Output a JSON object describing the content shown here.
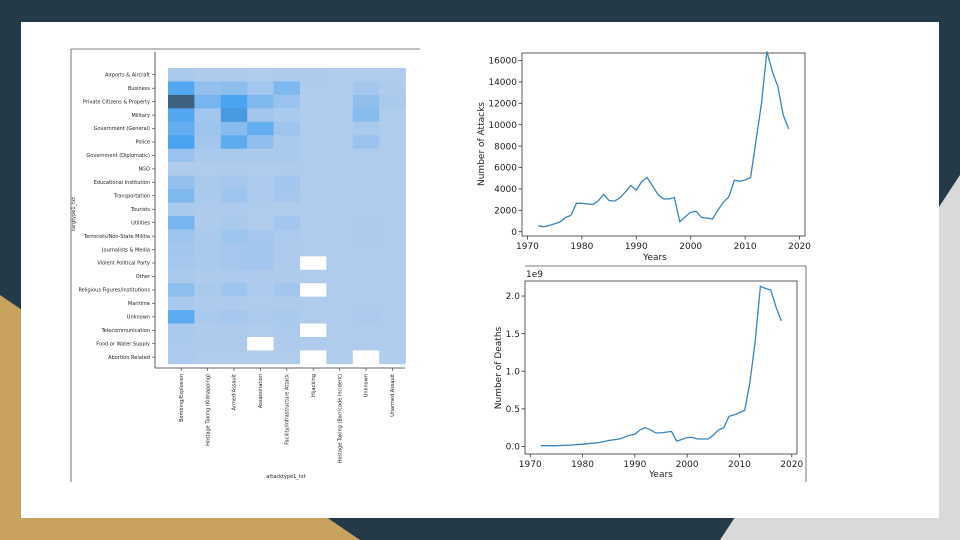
{
  "theme": {
    "background": "#243a48",
    "accent_gold": "#c9a25e",
    "accent_gray": "#d9d9d9",
    "slide": "#ffffff",
    "line_color": "#3a84b8",
    "heat_low": "#b3cded",
    "heat_mid": "#4aa3f0",
    "heat_high": "#3b5066",
    "missing": "#ffffff"
  },
  "chart_data": [
    {
      "type": "heatmap",
      "xlabel": "attacktype1_txt",
      "ylabel": "targtype1_txt",
      "x_categories": [
        "Bombing/Explosion",
        "Hostage Taking (Kidnapping)",
        "Armed Assault",
        "Assassination",
        "Facility/Infrastructure Attack",
        "Hijacking",
        "Hostage Taking (Barricade Incident)",
        "Unknown",
        "Unarmed Assault"
      ],
      "y_categories": [
        "Airports & Aircraft",
        "Business",
        "Private Citizens & Property",
        "Military",
        "Government (General)",
        "Police",
        "Government (Diplomatic)",
        "NGO",
        "Educational Institution",
        "Transportation",
        "Tourists",
        "Utilities",
        "Terrorists/Non-State Militia",
        "Journalists & Media",
        "Violent Political Party",
        "Other",
        "Religious Figures/Institutions",
        "Maritime",
        "Unknown",
        "Telecommunication",
        "Food or Water Supply",
        "Abortion Related"
      ],
      "values": [
        [
          0.05,
          0.03,
          0.03,
          0.02,
          0.03,
          0.03,
          0.02,
          0.02,
          0.02
        ],
        [
          0.55,
          0.18,
          0.22,
          0.1,
          0.3,
          0.02,
          0.02,
          0.08,
          0.03
        ],
        [
          0.92,
          0.35,
          0.6,
          0.3,
          0.15,
          0.02,
          0.02,
          0.2,
          0.05
        ],
        [
          0.55,
          0.1,
          0.65,
          0.1,
          0.05,
          0.02,
          0.02,
          0.25,
          0.02
        ],
        [
          0.45,
          0.12,
          0.25,
          0.45,
          0.12,
          0.02,
          0.02,
          0.05,
          0.02
        ],
        [
          0.6,
          0.1,
          0.48,
          0.2,
          0.05,
          0.02,
          0.02,
          0.15,
          0.02
        ],
        [
          0.15,
          0.05,
          0.05,
          0.05,
          0.05,
          0.02,
          0.02,
          0.02,
          0.02
        ],
        [
          0.02,
          0.02,
          0.02,
          0.02,
          0.02,
          0.02,
          0.02,
          0.02,
          0.02
        ],
        [
          0.18,
          0.05,
          0.08,
          0.04,
          0.1,
          0.02,
          0.02,
          0.02,
          0.02
        ],
        [
          0.3,
          0.05,
          0.12,
          0.04,
          0.08,
          0.02,
          0.02,
          0.02,
          0.02
        ],
        [
          0.05,
          0.03,
          0.04,
          0.02,
          0.02,
          0.02,
          0.02,
          0.02,
          0.02
        ],
        [
          0.35,
          0.03,
          0.05,
          0.02,
          0.1,
          0.02,
          0.02,
          0.03,
          0.02
        ],
        [
          0.12,
          0.06,
          0.12,
          0.08,
          0.04,
          0.02,
          0.02,
          0.03,
          0.02
        ],
        [
          0.1,
          0.05,
          0.08,
          0.1,
          0.03,
          0.02,
          0.02,
          0.02,
          0.02
        ],
        [
          0.08,
          0.05,
          0.08,
          0.1,
          0.03,
          null,
          0.02,
          0.02,
          0.02
        ],
        [
          0.06,
          0.03,
          0.04,
          0.03,
          0.03,
          0.02,
          0.02,
          0.02,
          0.02
        ],
        [
          0.22,
          0.05,
          0.12,
          0.04,
          0.1,
          null,
          0.02,
          0.02,
          0.02
        ],
        [
          0.06,
          0.03,
          0.03,
          0.02,
          0.02,
          0.02,
          0.02,
          0.02,
          0.02
        ],
        [
          0.5,
          0.06,
          0.08,
          0.04,
          0.06,
          0.02,
          0.02,
          0.04,
          0.02
        ],
        [
          0.05,
          0.03,
          0.03,
          0.02,
          0.04,
          null,
          0.02,
          0.02,
          0.02
        ],
        [
          0.04,
          0.03,
          0.03,
          null,
          0.03,
          0.02,
          0.02,
          0.02,
          0.02
        ],
        [
          0.04,
          0.02,
          0.02,
          0.02,
          0.02,
          null,
          0.02,
          null,
          0.02
        ]
      ]
    },
    {
      "type": "line",
      "xlabel": "Years",
      "ylabel": "Number of Attacks",
      "xlim": [
        1969,
        2021
      ],
      "ylim": [
        -400,
        16700
      ],
      "xticks": [
        1970,
        1980,
        1990,
        2000,
        2010,
        2020
      ],
      "yticks": [
        0,
        2000,
        4000,
        6000,
        8000,
        10000,
        12000,
        14000,
        16000
      ],
      "ytick_labels": [
        "0",
        "2000",
        "4000",
        "6000",
        "8000",
        "10000",
        "12000",
        "14000",
        "16000"
      ],
      "series": [
        {
          "x": [
            1972,
            1973,
            1974,
            1975,
            1976,
            1977,
            1978,
            1979,
            1980,
            1981,
            1982,
            1983,
            1984,
            1985,
            1986,
            1987,
            1988,
            1989,
            1990,
            1991,
            1992,
            1994,
            1995,
            1996,
            1997,
            1998,
            1999,
            2000,
            2001,
            2002,
            2003,
            2004,
            2005,
            2006,
            2007,
            2008,
            2009,
            2010,
            2011,
            2012,
            2013,
            2014,
            2015,
            2016,
            2017,
            2018
          ],
          "y": [
            550,
            470,
            580,
            740,
            920,
            1320,
            1530,
            2660,
            2660,
            2590,
            2550,
            2870,
            3490,
            2920,
            2860,
            3180,
            3720,
            4320,
            3890,
            4680,
            5070,
            3460,
            3080,
            3060,
            3200,
            930,
            1390,
            1810,
            1910,
            1330,
            1280,
            1170,
            2020,
            2750,
            3240,
            4800,
            4720,
            4830,
            5080,
            8520,
            11990,
            16860,
            14960,
            13590,
            10900,
            9610
          ]
        }
      ]
    },
    {
      "type": "line",
      "xlabel": "Years",
      "ylabel": "Number of Deaths",
      "scale_note": "1e9",
      "xlim": [
        1969,
        2021
      ],
      "ylim": [
        -0.1,
        2.2
      ],
      "xticks": [
        1970,
        1980,
        1990,
        2000,
        2010,
        2020
      ],
      "yticks": [
        0.0,
        0.5,
        1.0,
        1.5,
        2.0
      ],
      "ytick_labels": [
        "0.0",
        "0.5",
        "1.0",
        "1.5",
        "2.0"
      ],
      "series": [
        {
          "x": [
            1972,
            1975,
            1978,
            1980,
            1983,
            1985,
            1987,
            1989,
            1990,
            1991,
            1992,
            1993,
            1994,
            1995,
            1997,
            1998,
            2000,
            2001,
            2002,
            2004,
            2005,
            2006,
            2007,
            2008,
            2009,
            2010,
            2011,
            2012,
            2013,
            2014,
            2015,
            2016,
            2017,
            2018
          ],
          "y": [
            0.01,
            0.01,
            0.02,
            0.03,
            0.05,
            0.08,
            0.1,
            0.15,
            0.16,
            0.22,
            0.25,
            0.22,
            0.18,
            0.18,
            0.2,
            0.07,
            0.12,
            0.12,
            0.1,
            0.1,
            0.15,
            0.22,
            0.25,
            0.4,
            0.42,
            0.45,
            0.48,
            0.85,
            1.4,
            2.13,
            2.1,
            2.08,
            1.85,
            1.67
          ]
        }
      ]
    }
  ]
}
